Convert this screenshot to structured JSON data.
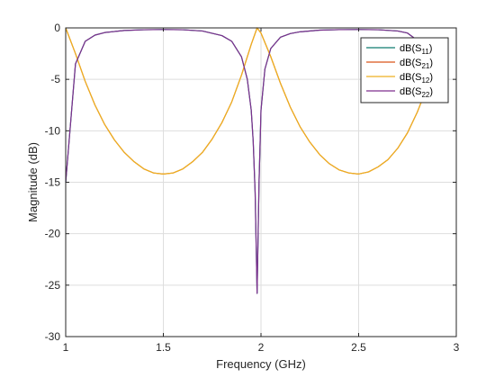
{
  "chart_data": {
    "type": "line",
    "xlabel": "Frequency (GHz)",
    "ylabel": "Magnitude (dB)",
    "xlim": [
      1,
      3
    ],
    "ylim": [
      -30,
      0
    ],
    "x_ticks": [
      1,
      1.5,
      2,
      2.5,
      3
    ],
    "x_tick_labels": [
      "1",
      "1.5",
      "2",
      "2.5",
      "3"
    ],
    "y_ticks": [
      0,
      -5,
      -10,
      -15,
      -20,
      -25,
      -30
    ],
    "y_tick_labels": [
      "0",
      "-5",
      "-10",
      "-15",
      "-20",
      "-25",
      "-30"
    ],
    "grid": true,
    "legend_position": "top-right",
    "x_range_data": [
      1,
      2.85
    ],
    "series": [
      {
        "name": "dB(S11)",
        "legend_main": "dB(S",
        "legend_sub": "11",
        "color": "#0f7a6f",
        "x": [
          1.0,
          1.05,
          1.1,
          1.15,
          1.2,
          1.3,
          1.4,
          1.5,
          1.6,
          1.7,
          1.8,
          1.85,
          1.9,
          1.93,
          1.95,
          1.96,
          1.97,
          1.98,
          1.99,
          2.0,
          2.02,
          2.05,
          2.1,
          2.15,
          2.2,
          2.3,
          2.4,
          2.5,
          2.6,
          2.7,
          2.75,
          2.8,
          2.83,
          2.85
        ],
        "y": [
          -15.0,
          -3.5,
          -1.3,
          -0.7,
          -0.45,
          -0.25,
          -0.18,
          -0.16,
          -0.18,
          -0.3,
          -0.75,
          -1.3,
          -2.8,
          -5.0,
          -8.0,
          -11.0,
          -16.0,
          -25.8,
          -15.0,
          -8.0,
          -4.0,
          -2.0,
          -0.9,
          -0.55,
          -0.38,
          -0.22,
          -0.17,
          -0.16,
          -0.18,
          -0.3,
          -0.5,
          -1.2,
          -3.0,
          -6.0
        ]
      },
      {
        "name": "dB(S21)",
        "legend_main": "dB(S",
        "legend_sub": "21",
        "color": "#d95319",
        "x": [
          1.0,
          1.05,
          1.1,
          1.15,
          1.2,
          1.25,
          1.3,
          1.35,
          1.4,
          1.45,
          1.5,
          1.55,
          1.6,
          1.65,
          1.7,
          1.75,
          1.8,
          1.85,
          1.9,
          1.95,
          1.98,
          2.0,
          2.05,
          2.1,
          2.15,
          2.2,
          2.25,
          2.3,
          2.35,
          2.4,
          2.45,
          2.5,
          2.55,
          2.6,
          2.65,
          2.7,
          2.75,
          2.8,
          2.85
        ],
        "y": [
          0.0,
          -2.5,
          -5.2,
          -7.5,
          -9.4,
          -10.9,
          -12.1,
          -13.0,
          -13.7,
          -14.1,
          -14.2,
          -14.1,
          -13.7,
          -13.0,
          -12.1,
          -10.8,
          -9.2,
          -7.2,
          -4.6,
          -1.6,
          0.0,
          -0.5,
          -2.8,
          -5.4,
          -7.7,
          -9.6,
          -11.1,
          -12.3,
          -13.2,
          -13.8,
          -14.1,
          -14.2,
          -14.0,
          -13.5,
          -12.8,
          -11.7,
          -10.2,
          -8.2,
          -5.8
        ]
      },
      {
        "name": "dB(S12)",
        "legend_main": "dB(S",
        "legend_sub": "12",
        "color": "#edb120",
        "x": [
          1.0,
          1.05,
          1.1,
          1.15,
          1.2,
          1.25,
          1.3,
          1.35,
          1.4,
          1.45,
          1.5,
          1.55,
          1.6,
          1.65,
          1.7,
          1.75,
          1.8,
          1.85,
          1.9,
          1.95,
          1.98,
          2.0,
          2.05,
          2.1,
          2.15,
          2.2,
          2.25,
          2.3,
          2.35,
          2.4,
          2.45,
          2.5,
          2.55,
          2.6,
          2.65,
          2.7,
          2.75,
          2.8,
          2.85
        ],
        "y": [
          0.0,
          -2.5,
          -5.2,
          -7.5,
          -9.4,
          -10.9,
          -12.1,
          -13.0,
          -13.7,
          -14.1,
          -14.2,
          -14.1,
          -13.7,
          -13.0,
          -12.1,
          -10.8,
          -9.2,
          -7.2,
          -4.6,
          -1.6,
          0.0,
          -0.5,
          -2.8,
          -5.4,
          -7.7,
          -9.6,
          -11.1,
          -12.3,
          -13.2,
          -13.8,
          -14.1,
          -14.2,
          -14.0,
          -13.5,
          -12.8,
          -11.7,
          -10.2,
          -8.2,
          -5.8
        ]
      },
      {
        "name": "dB(S22)",
        "legend_main": "dB(S",
        "legend_sub": "22",
        "color": "#7e2f8e",
        "x": [
          1.0,
          1.05,
          1.1,
          1.15,
          1.2,
          1.3,
          1.4,
          1.5,
          1.6,
          1.7,
          1.8,
          1.85,
          1.9,
          1.93,
          1.95,
          1.96,
          1.97,
          1.98,
          1.99,
          2.0,
          2.02,
          2.05,
          2.1,
          2.15,
          2.2,
          2.3,
          2.4,
          2.5,
          2.6,
          2.7,
          2.75,
          2.8,
          2.83,
          2.85
        ],
        "y": [
          -15.0,
          -3.5,
          -1.3,
          -0.7,
          -0.45,
          -0.25,
          -0.18,
          -0.16,
          -0.18,
          -0.3,
          -0.75,
          -1.3,
          -2.8,
          -5.0,
          -8.0,
          -11.0,
          -16.0,
          -25.8,
          -15.0,
          -8.0,
          -4.0,
          -2.0,
          -0.9,
          -0.55,
          -0.38,
          -0.22,
          -0.17,
          -0.16,
          -0.18,
          -0.3,
          -0.5,
          -1.2,
          -3.0,
          -6.0
        ]
      }
    ]
  }
}
